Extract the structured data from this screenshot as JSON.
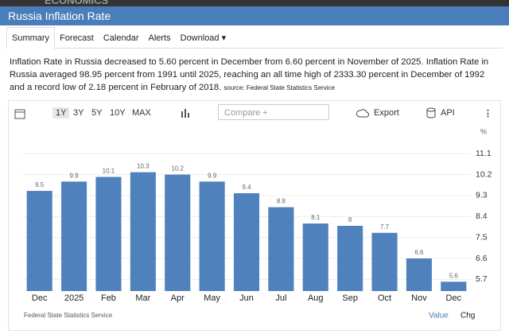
{
  "brand": "ECONOMICS",
  "header": {
    "title": "Russia Inflation Rate"
  },
  "tabs": [
    "Summary",
    "Forecast",
    "Calendar",
    "Alerts",
    "Download"
  ],
  "description": "Inflation Rate in Russia decreased to 5.60 percent in December from 6.60 percent in November of 2025. Inflation Rate in Russia averaged 98.95 percent from 1991 until 2025, reaching an all time high of 2333.30 percent in December of 1992 and a record low of 2.18 percent in February of 2018.",
  "source": "source: Federal State Statistics Service",
  "toolbar": {
    "ranges": [
      "1Y",
      "3Y",
      "5Y",
      "10Y",
      "MAX"
    ],
    "compare": "Compare +",
    "export": "Export",
    "api": "API"
  },
  "chart_data": {
    "type": "bar",
    "unit": "%",
    "categories": [
      "Dec",
      "2025",
      "Feb",
      "Mar",
      "Apr",
      "May",
      "Jun",
      "Jul",
      "Aug",
      "Sep",
      "Oct",
      "Nov",
      "Dec"
    ],
    "values": [
      9.5,
      9.9,
      10.1,
      10.3,
      10.2,
      9.9,
      9.4,
      8.8,
      8.1,
      8,
      7.7,
      6.6,
      5.6
    ],
    "color": "#4f81bd",
    "ylim": [
      5.2,
      11.55
    ],
    "yticks": [
      5.7,
      6.6,
      7.5,
      8.4,
      9.3,
      10.2,
      11.1
    ],
    "grid": true,
    "source": "Federal State Statistics Service"
  },
  "footer": {
    "value": "Value",
    "chg": "Chg"
  }
}
